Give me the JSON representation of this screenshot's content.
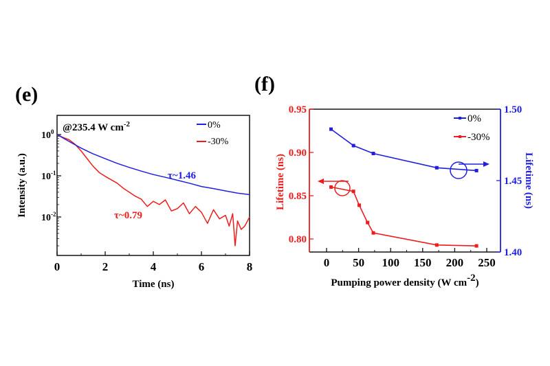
{
  "colors": {
    "blue": "#1f1fe0",
    "red": "#ee1c1c",
    "axis": "#111111"
  },
  "chart_data": [
    {
      "panel_label": "(e)",
      "type": "line",
      "xlabel": "Time (ns)",
      "ylabel": "Intensity (a.u.)",
      "xlim": [
        0,
        8
      ],
      "ylim": [
        0.0012,
        3
      ],
      "yscale": "log",
      "xticks": [
        "0",
        "2",
        "4",
        "6",
        "8"
      ],
      "yticks": [
        {
          "base": "10",
          "exp": "0"
        },
        {
          "base": "10",
          "exp": "-1"
        },
        {
          "base": "10",
          "exp": "-2"
        }
      ],
      "legend_placement": "top-right",
      "annotation_condition": {
        "text": "@235.4 W cm",
        "sup": "-2"
      },
      "series": [
        {
          "name": "0%",
          "color": "#1f1fe0",
          "annotation": "τ~1.46",
          "x": [
            0,
            0.5,
            1,
            1.5,
            2,
            2.5,
            3,
            3.5,
            4,
            4.5,
            5,
            5.5,
            6,
            6.5,
            7,
            7.5,
            8
          ],
          "y": [
            1.0,
            0.68,
            0.47,
            0.34,
            0.26,
            0.2,
            0.16,
            0.13,
            0.107,
            0.092,
            0.078,
            0.066,
            0.055,
            0.049,
            0.043,
            0.038,
            0.035
          ]
        },
        {
          "name": "-30%",
          "color": "#ee1c1c",
          "annotation": "τ~0.79",
          "x": [
            0,
            0.25,
            0.5,
            0.75,
            1,
            1.25,
            1.5,
            1.75,
            2,
            2.25,
            2.5,
            2.75,
            3,
            3.25,
            3.5,
            3.75,
            4,
            4.25,
            4.5,
            4.75,
            5,
            5.25,
            5.5,
            5.75,
            6,
            6.25,
            6.5,
            6.75,
            7,
            7.15,
            7.3,
            7.4,
            7.5,
            7.65,
            7.8,
            8
          ],
          "y": [
            1.0,
            0.85,
            0.75,
            0.58,
            0.4,
            0.26,
            0.17,
            0.12,
            0.097,
            0.08,
            0.066,
            0.05,
            0.04,
            0.032,
            0.027,
            0.018,
            0.024,
            0.02,
            0.026,
            0.014,
            0.016,
            0.022,
            0.012,
            0.018,
            0.013,
            0.007,
            0.015,
            0.009,
            0.011,
            0.006,
            0.012,
            0.002,
            0.008,
            0.005,
            0.006,
            0.01
          ]
        }
      ]
    },
    {
      "panel_label": "(f)",
      "type": "line",
      "xlabel": {
        "text": "Pumping power density (W cm",
        "sup": "-2",
        "close": ")"
      },
      "ylabel_left": "Lifetime (ns)",
      "ylabel_right": "Lifetime (ns)",
      "xlim": [
        -27,
        271
      ],
      "ylim_left": [
        0.785,
        0.95
      ],
      "ylim_right": [
        1.4,
        1.5
      ],
      "xticks": [
        "0",
        "50",
        "100",
        "150",
        "200",
        "250"
      ],
      "yticks_left": [
        "0.95",
        "0.90",
        "0.85",
        "0.80"
      ],
      "yticks_right": [
        "1.50",
        "1.45",
        "1.40"
      ],
      "legend_placement": "top-right",
      "series": [
        {
          "name": "0%",
          "color": "#1f1fe0",
          "axis": "right",
          "x": [
            7,
            42,
            73,
            172,
            234
          ],
          "y": [
            1.486,
            1.4745,
            1.469,
            1.459,
            1.457
          ]
        },
        {
          "name": "-30%",
          "color": "#ee1c1c",
          "axis": "left",
          "x": [
            7,
            42,
            51,
            64,
            73,
            172,
            234
          ],
          "y": [
            0.86,
            0.855,
            0.839,
            0.819,
            0.807,
            0.793,
            0.792
          ]
        }
      ]
    }
  ]
}
